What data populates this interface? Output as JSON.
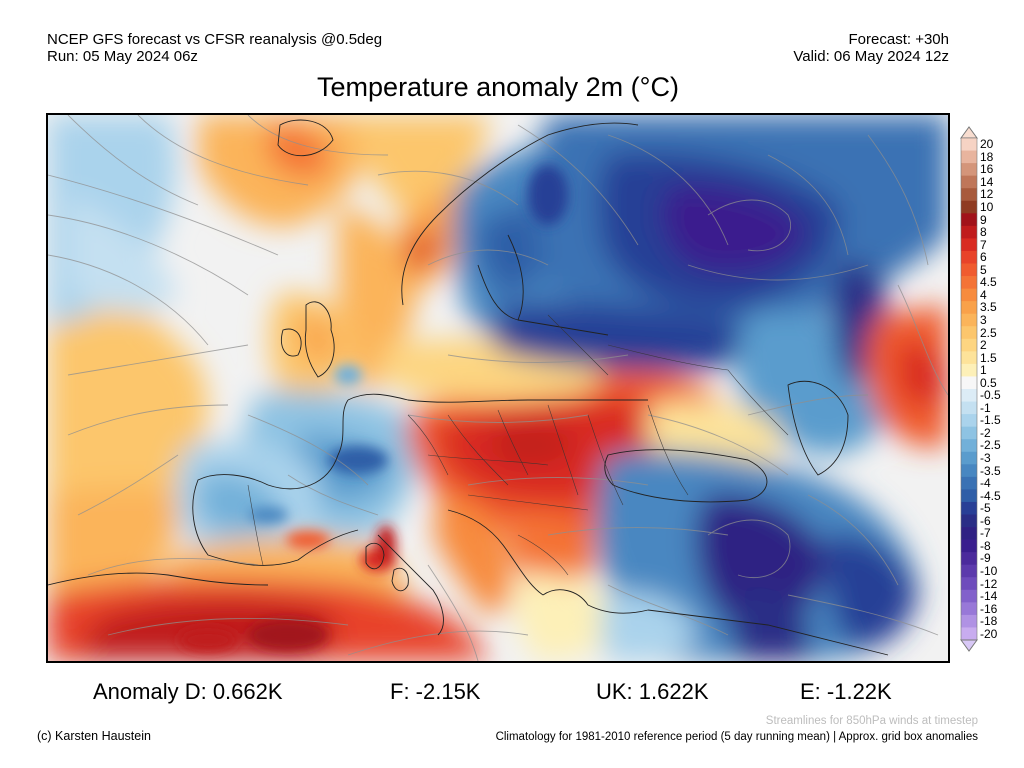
{
  "header": {
    "source": "NCEP GFS forecast vs CFSR reanalysis @0.5deg",
    "run": "Run: 05 May 2024 06z",
    "forecast": "Forecast: +30h",
    "valid": "Valid: 06 May 2024 12z",
    "title": "Temperature anomaly 2m (°C)"
  },
  "colorbar": {
    "labels": [
      "20",
      "18",
      "16",
      "14",
      "12",
      "10",
      "9",
      "8",
      "7",
      "6",
      "5",
      "4.5",
      "4",
      "3.5",
      "3",
      "2.5",
      "2",
      "1.5",
      "1",
      "0.5",
      "-0.5",
      "-1",
      "-1.5",
      "-2",
      "-2.5",
      "-3",
      "-3.5",
      "-4",
      "-4.5",
      "-5",
      "-6",
      "-7",
      "-8",
      "-9",
      "-10",
      "-12",
      "-14",
      "-16",
      "-18",
      "-20"
    ],
    "colors": [
      "#f6d3c4",
      "#e8b49e",
      "#d4957a",
      "#bf7659",
      "#a85a3c",
      "#8f3b22",
      "#a1121a",
      "#c01c1d",
      "#d92b22",
      "#e8432a",
      "#f05b2f",
      "#f47336",
      "#f78b3e",
      "#f9a14a",
      "#fbb45a",
      "#fcc66c",
      "#fdd581",
      "#fde39a",
      "#fdf0b8",
      "#f7f7f7",
      "#dcecf6",
      "#c4e0f1",
      "#aad3ec",
      "#8ec3e3",
      "#72b0d9",
      "#5a9ccd",
      "#4887c1",
      "#3a72b4",
      "#2f5ea7",
      "#283f96",
      "#2a2e86",
      "#2f2183",
      "#3a1e8e",
      "#4b2a9c",
      "#5c3aac",
      "#6e4cbc",
      "#8261cb",
      "#9878d8",
      "#b092e4",
      "#c8acef"
    ],
    "ends": {
      "top": "#f8ddd0",
      "bottom": "#d8c8f6"
    }
  },
  "anomalies": {
    "d": "Anomaly D: 0.662K",
    "f": "F: -2.15K",
    "uk": "UK: 1.622K",
    "e": "E: -1.22K"
  },
  "footer": {
    "credit": "(c) Karsten Haustein",
    "streamlines": "Streamlines for 850hPa winds at timestep",
    "climatology": "Climatology for 1981-2010 reference period (5 day running mean) | Approx. grid box anomalies"
  }
}
